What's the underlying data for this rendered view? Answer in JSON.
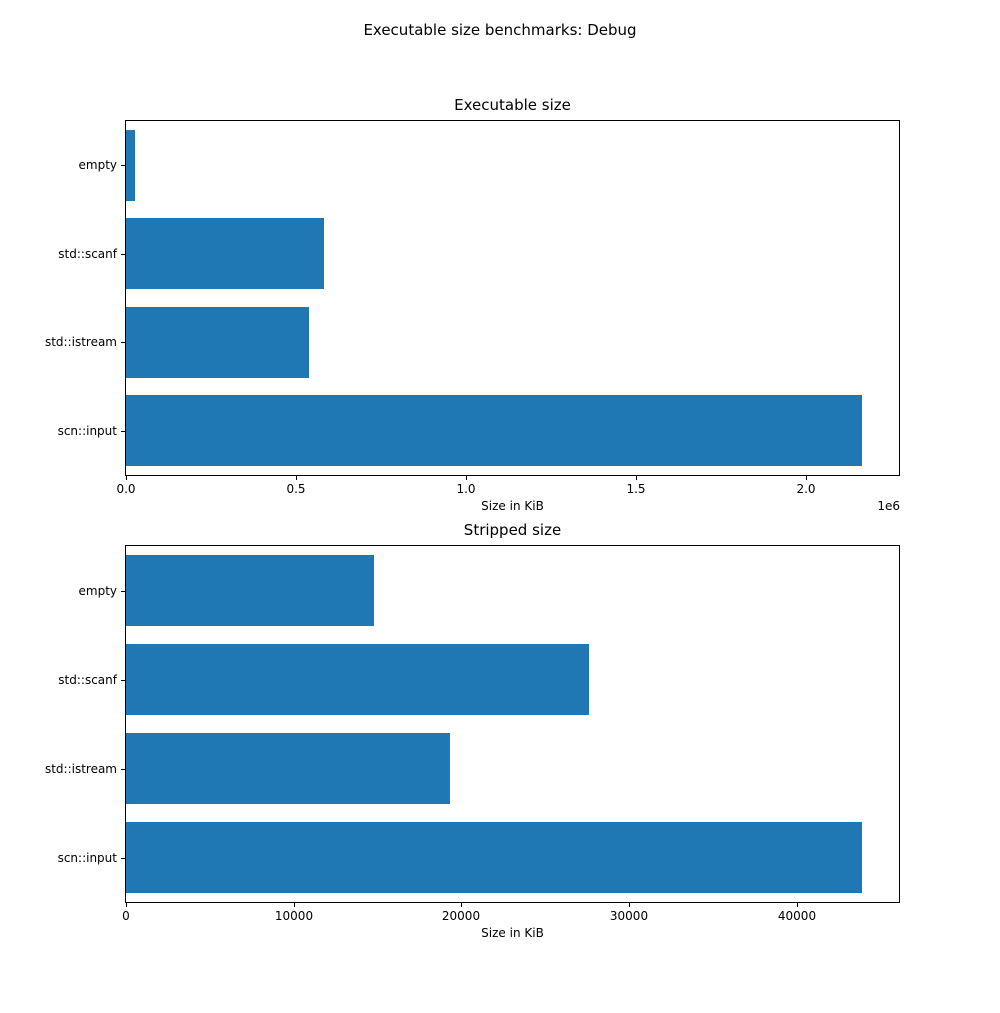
{
  "figure": {
    "suptitle": "Executable size benchmarks: Debug",
    "background_color": "#ffffff",
    "text_color": "#000000",
    "bar_color": "#1f77b4"
  },
  "chart_data": [
    {
      "type": "bar",
      "orientation": "horizontal",
      "title": "Executable size",
      "xlabel": "Size in KiB",
      "categories": [
        "empty",
        "std::scanf",
        "std::istream",
        "scn::input"
      ],
      "values": [
        26000,
        582000,
        537000,
        2166000
      ],
      "xlim": [
        0,
        2274000
      ],
      "xticks": [
        0,
        500000,
        1000000,
        1500000,
        2000000
      ],
      "xtick_labels": [
        "0.0",
        "0.5",
        "1.0",
        "1.5",
        "2.0"
      ],
      "offset_text": "1e6",
      "bar_color": "#1f77b4",
      "grid": false,
      "legend": null
    },
    {
      "type": "bar",
      "orientation": "horizontal",
      "title": "Stripped size",
      "xlabel": "Size in KiB",
      "categories": [
        "empty",
        "std::scanf",
        "std::istream",
        "scn::input"
      ],
      "values": [
        14800,
        27600,
        19300,
        43900
      ],
      "xlim": [
        0,
        46100
      ],
      "xticks": [
        0,
        10000,
        20000,
        30000,
        40000
      ],
      "xtick_labels": [
        "0",
        "10000",
        "20000",
        "30000",
        "40000"
      ],
      "offset_text": null,
      "bar_color": "#1f77b4",
      "grid": false,
      "legend": null
    }
  ]
}
